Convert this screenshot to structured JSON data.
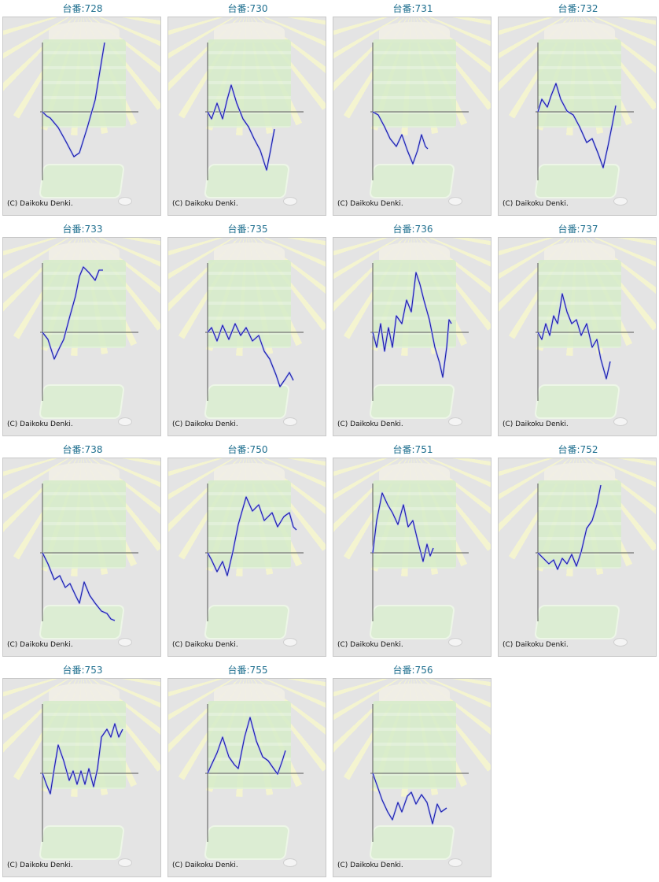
{
  "copyright": "(C) Daikoku Denki.",
  "colors": {
    "line": "#1c1ca8",
    "axis": "#555555",
    "title": "#1f6f8f"
  },
  "chart_data": [
    {
      "type": "line",
      "title": "台番:728",
      "ylim": [
        -88,
        88
      ],
      "points": [
        [
          0,
          0
        ],
        [
          5,
          -5
        ],
        [
          10,
          -8
        ],
        [
          20,
          -20
        ],
        [
          30,
          -38
        ],
        [
          40,
          -57
        ],
        [
          47,
          -52
        ],
        [
          57,
          -20
        ],
        [
          67,
          15
        ],
        [
          79,
          88
        ]
      ]
    },
    {
      "type": "line",
      "title": "台番:730",
      "ylim": [
        -88,
        88
      ],
      "points": [
        [
          0,
          0
        ],
        [
          5,
          -9
        ],
        [
          12,
          11
        ],
        [
          19,
          -9
        ],
        [
          25,
          16
        ],
        [
          30,
          34
        ],
        [
          37,
          11
        ],
        [
          45,
          -9
        ],
        [
          52,
          -19
        ],
        [
          59,
          -34
        ],
        [
          67,
          -49
        ],
        [
          75,
          -74
        ],
        [
          80,
          -49
        ],
        [
          85,
          -22
        ]
      ]
    },
    {
      "type": "line",
      "title": "台番:731",
      "ylim": [
        -88,
        88
      ],
      "points": [
        [
          0,
          0
        ],
        [
          7,
          -4
        ],
        [
          15,
          -19
        ],
        [
          22,
          -34
        ],
        [
          30,
          -44
        ],
        [
          37,
          -29
        ],
        [
          44,
          -49
        ],
        [
          51,
          -66
        ],
        [
          57,
          -49
        ],
        [
          62,
          -29
        ],
        [
          67,
          -44
        ],
        [
          70,
          -47
        ]
      ]
    },
    {
      "type": "line",
      "title": "台番:732",
      "ylim": [
        -88,
        88
      ],
      "points": [
        [
          0,
          0
        ],
        [
          5,
          16
        ],
        [
          12,
          6
        ],
        [
          17,
          21
        ],
        [
          23,
          36
        ],
        [
          29,
          16
        ],
        [
          37,
          1
        ],
        [
          45,
          -4
        ],
        [
          53,
          -19
        ],
        [
          62,
          -39
        ],
        [
          69,
          -34
        ],
        [
          77,
          -54
        ],
        [
          83,
          -71
        ],
        [
          89,
          -44
        ],
        [
          95,
          -14
        ],
        [
          99,
          8
        ]
      ]
    },
    {
      "type": "line",
      "title": "台番:733",
      "ylim": [
        -88,
        88
      ],
      "points": [
        [
          0,
          0
        ],
        [
          7,
          -9
        ],
        [
          15,
          -34
        ],
        [
          22,
          -19
        ],
        [
          27,
          -9
        ],
        [
          35,
          21
        ],
        [
          42,
          46
        ],
        [
          47,
          71
        ],
        [
          52,
          83
        ],
        [
          59,
          76
        ],
        [
          67,
          66
        ],
        [
          72,
          79
        ],
        [
          77,
          79
        ]
      ]
    },
    {
      "type": "line",
      "title": "台番:735",
      "ylim": [
        -88,
        88
      ],
      "points": [
        [
          0,
          0
        ],
        [
          5,
          6
        ],
        [
          12,
          -11
        ],
        [
          19,
          9
        ],
        [
          27,
          -9
        ],
        [
          35,
          11
        ],
        [
          42,
          -4
        ],
        [
          49,
          6
        ],
        [
          57,
          -11
        ],
        [
          65,
          -4
        ],
        [
          72,
          -24
        ],
        [
          79,
          -34
        ],
        [
          87,
          -54
        ],
        [
          92,
          -69
        ],
        [
          99,
          -59
        ],
        [
          104,
          -51
        ],
        [
          109,
          -61
        ]
      ]
    },
    {
      "type": "line",
      "title": "台番:736",
      "ylim": [
        -88,
        88
      ],
      "points": [
        [
          0,
          0
        ],
        [
          5,
          -19
        ],
        [
          10,
          11
        ],
        [
          15,
          -24
        ],
        [
          20,
          6
        ],
        [
          25,
          -19
        ],
        [
          30,
          21
        ],
        [
          37,
          11
        ],
        [
          43,
          41
        ],
        [
          49,
          26
        ],
        [
          55,
          76
        ],
        [
          60,
          61
        ],
        [
          65,
          41
        ],
        [
          72,
          16
        ],
        [
          79,
          -19
        ],
        [
          85,
          -39
        ],
        [
          89,
          -57
        ],
        [
          94,
          -19
        ],
        [
          97,
          16
        ],
        [
          100,
          11
        ]
      ]
    },
    {
      "type": "line",
      "title": "台番:737",
      "ylim": [
        -88,
        88
      ],
      "points": [
        [
          0,
          0
        ],
        [
          5,
          -9
        ],
        [
          10,
          11
        ],
        [
          15,
          -4
        ],
        [
          20,
          21
        ],
        [
          25,
          11
        ],
        [
          31,
          49
        ],
        [
          37,
          26
        ],
        [
          43,
          11
        ],
        [
          49,
          16
        ],
        [
          55,
          -4
        ],
        [
          62,
          11
        ],
        [
          69,
          -19
        ],
        [
          75,
          -9
        ],
        [
          80,
          -34
        ],
        [
          87,
          -59
        ],
        [
          92,
          -37
        ]
      ]
    },
    {
      "type": "line",
      "title": "台番:738",
      "ylim": [
        -88,
        88
      ],
      "points": [
        [
          0,
          0
        ],
        [
          7,
          -14
        ],
        [
          15,
          -34
        ],
        [
          22,
          -29
        ],
        [
          29,
          -44
        ],
        [
          35,
          -39
        ],
        [
          42,
          -54
        ],
        [
          47,
          -64
        ],
        [
          53,
          -37
        ],
        [
          60,
          -54
        ],
        [
          67,
          -64
        ],
        [
          75,
          -74
        ],
        [
          82,
          -77
        ],
        [
          87,
          -84
        ],
        [
          92,
          -86
        ]
      ]
    },
    {
      "type": "line",
      "title": "台番:750",
      "ylim": [
        -88,
        88
      ],
      "points": [
        [
          0,
          0
        ],
        [
          5,
          -9
        ],
        [
          12,
          -24
        ],
        [
          19,
          -11
        ],
        [
          25,
          -29
        ],
        [
          32,
          1
        ],
        [
          39,
          36
        ],
        [
          49,
          71
        ],
        [
          57,
          53
        ],
        [
          65,
          61
        ],
        [
          72,
          41
        ],
        [
          82,
          51
        ],
        [
          89,
          33
        ],
        [
          97,
          46
        ],
        [
          104,
          51
        ],
        [
          109,
          33
        ],
        [
          113,
          29
        ]
      ]
    },
    {
      "type": "line",
      "title": "台番:751",
      "ylim": [
        -88,
        88
      ],
      "points": [
        [
          0,
          0
        ],
        [
          5,
          41
        ],
        [
          12,
          76
        ],
        [
          19,
          61
        ],
        [
          25,
          51
        ],
        [
          32,
          36
        ],
        [
          39,
          61
        ],
        [
          45,
          33
        ],
        [
          51,
          41
        ],
        [
          57,
          16
        ],
        [
          64,
          -11
        ],
        [
          69,
          11
        ],
        [
          73,
          -4
        ],
        [
          77,
          6
        ]
      ]
    },
    {
      "type": "line",
      "title": "台番:752",
      "ylim": [
        -88,
        88
      ],
      "points": [
        [
          0,
          0
        ],
        [
          7,
          -7
        ],
        [
          14,
          -14
        ],
        [
          20,
          -9
        ],
        [
          25,
          -21
        ],
        [
          31,
          -7
        ],
        [
          37,
          -14
        ],
        [
          43,
          -2
        ],
        [
          49,
          -17
        ],
        [
          55,
          1
        ],
        [
          62,
          31
        ],
        [
          69,
          41
        ],
        [
          75,
          61
        ],
        [
          80,
          86
        ]
      ]
    },
    {
      "type": "line",
      "title": "台番:753",
      "ylim": [
        -88,
        88
      ],
      "points": [
        [
          0,
          0
        ],
        [
          5,
          -14
        ],
        [
          10,
          -26
        ],
        [
          15,
          6
        ],
        [
          20,
          36
        ],
        [
          27,
          16
        ],
        [
          34,
          -9
        ],
        [
          39,
          3
        ],
        [
          44,
          -14
        ],
        [
          49,
          3
        ],
        [
          54,
          -14
        ],
        [
          59,
          6
        ],
        [
          65,
          -17
        ],
        [
          70,
          6
        ],
        [
          75,
          46
        ],
        [
          82,
          56
        ],
        [
          87,
          46
        ],
        [
          92,
          63
        ],
        [
          97,
          46
        ],
        [
          102,
          56
        ]
      ]
    },
    {
      "type": "line",
      "title": "台番:755",
      "ylim": [
        -88,
        88
      ],
      "points": [
        [
          0,
          0
        ],
        [
          5,
          11
        ],
        [
          12,
          26
        ],
        [
          19,
          46
        ],
        [
          27,
          21
        ],
        [
          34,
          11
        ],
        [
          39,
          6
        ],
        [
          47,
          46
        ],
        [
          54,
          71
        ],
        [
          62,
          41
        ],
        [
          70,
          21
        ],
        [
          77,
          16
        ],
        [
          84,
          6
        ],
        [
          89,
          -1
        ],
        [
          95,
          16
        ],
        [
          99,
          29
        ]
      ]
    },
    {
      "type": "line",
      "title": "台番:756",
      "ylim": [
        -88,
        88
      ],
      "points": [
        [
          0,
          0
        ],
        [
          5,
          -14
        ],
        [
          12,
          -34
        ],
        [
          19,
          -49
        ],
        [
          25,
          -59
        ],
        [
          32,
          -37
        ],
        [
          37,
          -49
        ],
        [
          44,
          -29
        ],
        [
          49,
          -24
        ],
        [
          55,
          -39
        ],
        [
          62,
          -27
        ],
        [
          69,
          -37
        ],
        [
          76,
          -64
        ],
        [
          82,
          -39
        ],
        [
          87,
          -49
        ],
        [
          94,
          -44
        ]
      ]
    }
  ]
}
